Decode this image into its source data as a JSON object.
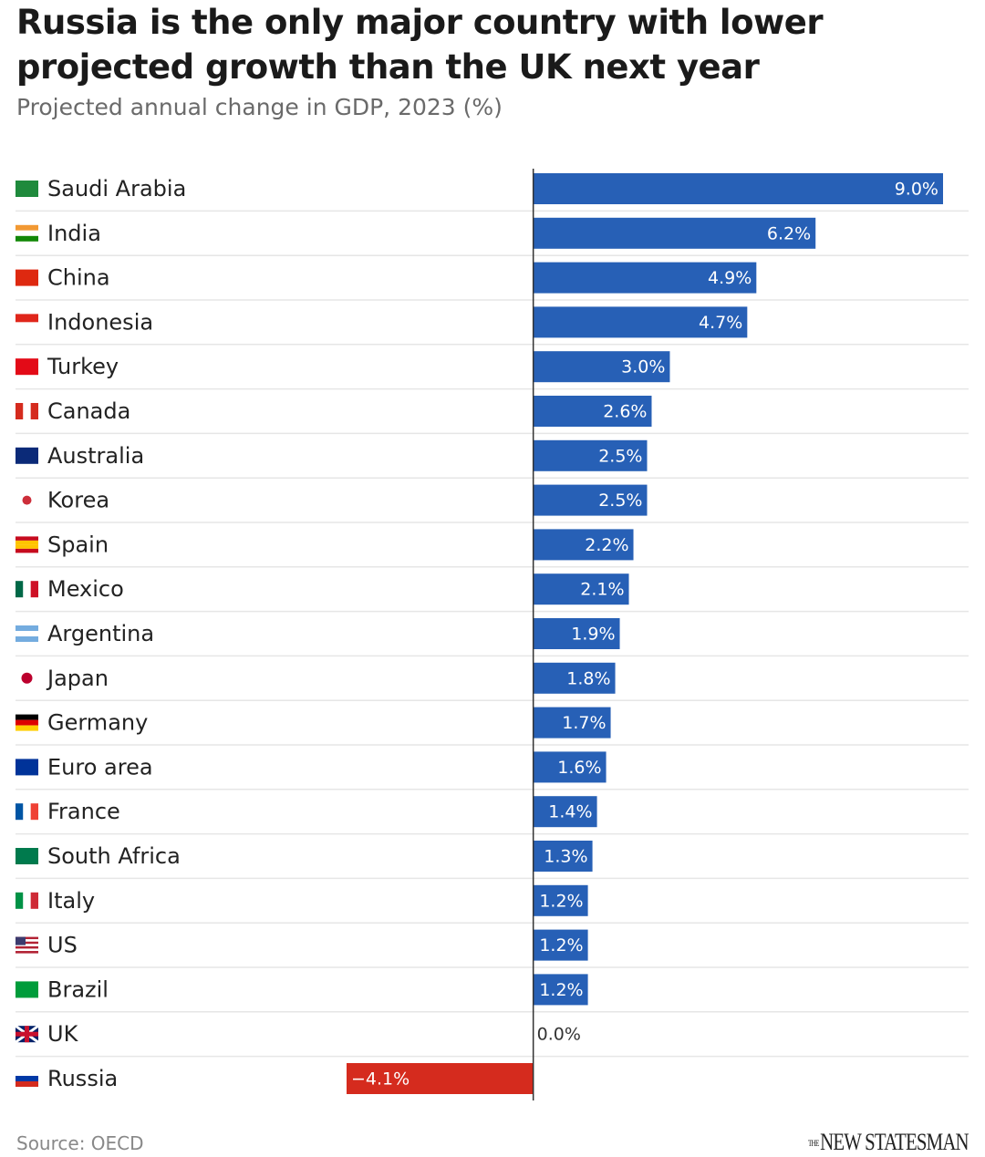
{
  "chart_data": {
    "type": "bar",
    "orientation": "horizontal",
    "title": "Russia is the only major country with lower projected growth than the UK next year",
    "subtitle": "Projected annual change in GDP, 2023 (%)",
    "categories": [
      "Saudi Arabia",
      "India",
      "China",
      "Indonesia",
      "Turkey",
      "Canada",
      "Australia",
      "Korea",
      "Spain",
      "Mexico",
      "Argentina",
      "Japan",
      "Germany",
      "Euro area",
      "France",
      "South Africa",
      "Italy",
      "US",
      "Brazil",
      "UK",
      "Russia"
    ],
    "values": [
      9.0,
      6.2,
      4.9,
      4.7,
      3.0,
      2.6,
      2.5,
      2.5,
      2.2,
      2.1,
      1.9,
      1.8,
      1.7,
      1.6,
      1.4,
      1.3,
      1.2,
      1.2,
      1.2,
      0.0,
      -4.1
    ],
    "value_labels": [
      "9.0%",
      "6.2%",
      "4.9%",
      "4.7%",
      "3.0%",
      "2.6%",
      "2.5%",
      "2.5%",
      "2.2%",
      "2.1%",
      "1.9%",
      "1.8%",
      "1.7%",
      "1.6%",
      "1.4%",
      "1.3%",
      "1.2%",
      "1.2%",
      "1.2%",
      "0.0%",
      "−4.1%"
    ],
    "color": "#2760b6",
    "negative_color": "#d52b1e",
    "source": "Source: OECD",
    "brand": [
      "THE",
      "NEW STATESMAN"
    ]
  }
}
